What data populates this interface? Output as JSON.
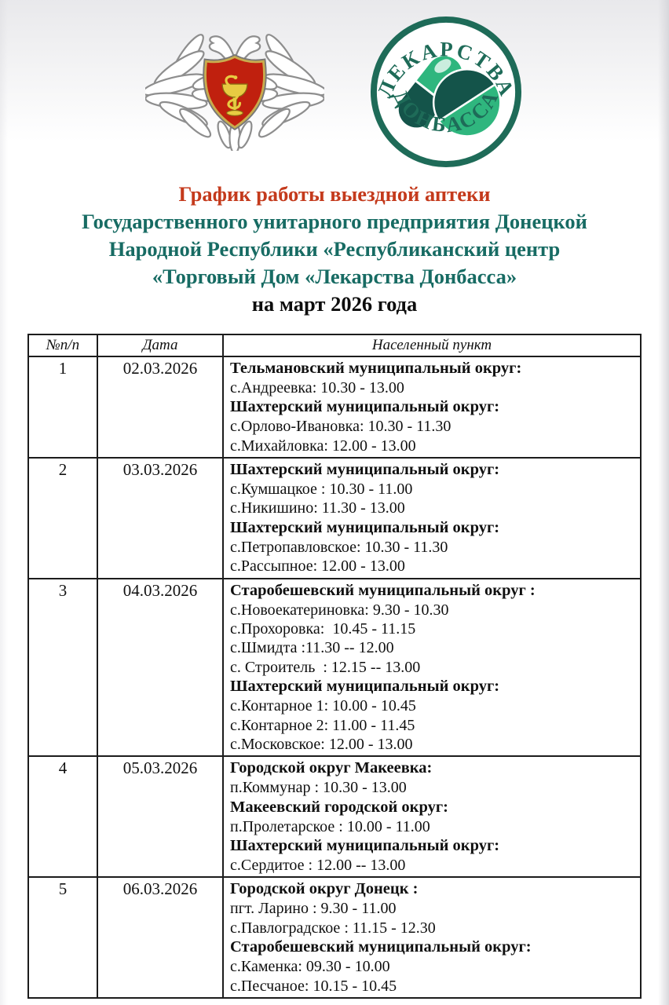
{
  "colors": {
    "title_red": "#c43a1c",
    "title_teal": "#176b63",
    "logo_dark": "#1e6b58",
    "logo_light": "#2fb67e",
    "emblem_red": "#c0200e",
    "emblem_gold": "#e8cb42"
  },
  "logo": {
    "arc_top": "ЛЕКАРСТВА",
    "arc_bottom": "ДОНБАССА"
  },
  "header": {
    "title": "График работы выездной аптеки",
    "org_lines": [
      "Государственного унитарного предприятия Донецкой",
      "Народной Республики «Республиканский центр",
      "«Торговый Дом «Лекарства Донбасса»"
    ],
    "period": "на март 2026 года"
  },
  "table": {
    "headers": [
      "№п/п",
      "Дата",
      "Населенный пункт"
    ],
    "rows": [
      {
        "num": "1",
        "date": "02.03.2026",
        "lines": [
          {
            "bold": true,
            "text": "Тельмановский муниципальный округ:"
          },
          {
            "bold": false,
            "text": "с.Андреевка: 10.30 - 13.00"
          },
          {
            "bold": true,
            "text": "Шахтерский муниципальный округ:"
          },
          {
            "bold": false,
            "text": "с.Орлово-Ивановка: 10.30 - 11.30"
          },
          {
            "bold": false,
            "text": "с.Михайловка: 12.00 - 13.00"
          }
        ]
      },
      {
        "num": "2",
        "date": "03.03.2026",
        "lines": [
          {
            "bold": true,
            "text": "Шахтерский муниципальный округ:"
          },
          {
            "bold": false,
            "text": "с.Кумшацкое : 10.30 - 11.00"
          },
          {
            "bold": false,
            "text": "с.Никишино: 11.30 - 13.00"
          },
          {
            "bold": true,
            "text": "Шахтерский муниципальный округ:"
          },
          {
            "bold": false,
            "text": "с.Петропавловское: 10.30 - 11.30"
          },
          {
            "bold": false,
            "text": "с.Рассыпное: 12.00 - 13.00"
          }
        ]
      },
      {
        "num": "3",
        "date": "04.03.2026",
        "lines": [
          {
            "bold": true,
            "text": "Старобешевский муниципальный округ :"
          },
          {
            "bold": false,
            "text": "с.Новоекатериновка: 9.30 - 10.30"
          },
          {
            "bold": false,
            "text": "с.Прохоровка:  10.45 - 11.15"
          },
          {
            "bold": false,
            "text": "с.Шмидта :11.30 -- 12.00"
          },
          {
            "bold": false,
            "text": "с. Строитель  : 12.15 -- 13.00"
          },
          {
            "bold": true,
            "text": "Шахтерский муниципальный округ:"
          },
          {
            "bold": false,
            "text": "с.Контарное 1: 10.00 - 10.45"
          },
          {
            "bold": false,
            "text": "с.Контарное 2: 11.00 - 11.45"
          },
          {
            "bold": false,
            "text": "с.Московское: 12.00 - 13.00"
          }
        ]
      },
      {
        "num": "4",
        "date": "05.03.2026",
        "lines": [
          {
            "bold": true,
            "text": "Городской округ Макеевка:"
          },
          {
            "bold": false,
            "text": "п.Коммунар : 10.30 - 13.00"
          },
          {
            "bold": true,
            "text": "Макеевский городской округ:"
          },
          {
            "bold": false,
            "text": "п.Пролетарское : 10.00 - 11.00"
          },
          {
            "bold": true,
            "text": "Шахтерский муниципальный округ:"
          },
          {
            "bold": false,
            "text": "с.Сердитое : 12.00 -- 13.00"
          }
        ]
      },
      {
        "num": "5",
        "date": "06.03.2026",
        "lines": [
          {
            "bold": true,
            "text": "Городской округ Донецк :"
          },
          {
            "bold": false,
            "text": "пгт. Ларино : 9.30 - 11.00"
          },
          {
            "bold": false,
            "text": "с.Павлоградское : 11.15 - 12.30"
          },
          {
            "bold": true,
            "text": "Старобешевский муниципальный округ:"
          },
          {
            "bold": false,
            "text": "с.Каменка: 09.30 - 10.00"
          },
          {
            "bold": false,
            "text": "с.Песчаное: 10.15 - 10.45"
          }
        ]
      }
    ]
  }
}
